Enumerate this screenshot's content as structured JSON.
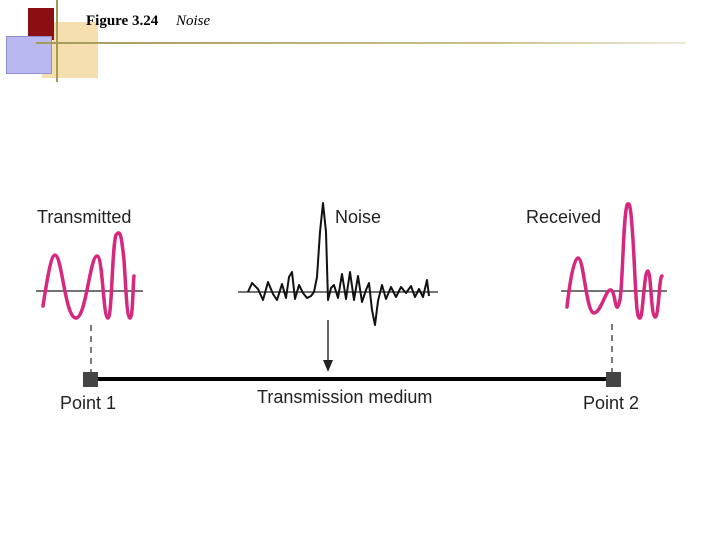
{
  "header": {
    "figure_number": "Figure 3.24",
    "figure_title": "Noise"
  },
  "labels": {
    "transmitted": "Transmitted",
    "noise": "Noise",
    "received": "Received",
    "point1": "Point 1",
    "point2": "Point 2",
    "medium": "Transmission medium"
  },
  "colors": {
    "signal": "#d6287f",
    "noise": "#111111",
    "line": "#000000",
    "node": "#444444",
    "accent_dark": "#8b0f12",
    "accent_gold": "#f5d9a0",
    "accent_blue": "#b9b8f0"
  }
}
